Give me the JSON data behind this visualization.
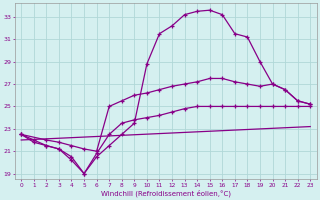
{
  "xlabel": "Windchill (Refroidissement éolien,°C)",
  "xlim": [
    -0.5,
    23.5
  ],
  "ylim": [
    18.5,
    34.2
  ],
  "xticks": [
    0,
    1,
    2,
    3,
    4,
    5,
    6,
    7,
    8,
    9,
    10,
    11,
    12,
    13,
    14,
    15,
    16,
    17,
    18,
    19,
    20,
    21,
    22,
    23
  ],
  "yticks": [
    19,
    21,
    23,
    25,
    27,
    29,
    31,
    33
  ],
  "bg_color": "#d5f0f0",
  "grid_color": "#b0d8d8",
  "line_color": "#880088",
  "line1_x": [
    0,
    1,
    2,
    3,
    4,
    5,
    6,
    7,
    8,
    9,
    10,
    11,
    12,
    13,
    14,
    15,
    16,
    17,
    18,
    19,
    20,
    21,
    22,
    23
  ],
  "line1_y": [
    22.5,
    22.0,
    21.5,
    21.2,
    20.5,
    19.0,
    20.5,
    21.5,
    22.5,
    23.5,
    28.8,
    31.5,
    32.2,
    33.2,
    33.5,
    33.6,
    33.2,
    31.5,
    31.2,
    29.0,
    27.0,
    26.5,
    25.5,
    25.2
  ],
  "line2_x": [
    0,
    2,
    3,
    4,
    5,
    6,
    7,
    8,
    9,
    10,
    11,
    12,
    13,
    14,
    15,
    16,
    17,
    18,
    19,
    20,
    21,
    22,
    23
  ],
  "line2_y": [
    22.5,
    22.0,
    21.8,
    21.5,
    21.2,
    21.0,
    25.0,
    25.5,
    26.0,
    26.2,
    26.5,
    26.8,
    27.0,
    27.2,
    27.5,
    27.5,
    27.2,
    27.0,
    26.8,
    27.0,
    26.5,
    25.5,
    25.2
  ],
  "line3_x": [
    0,
    1,
    2,
    3,
    4,
    5,
    6,
    7,
    8,
    9,
    10,
    11,
    12,
    13,
    14,
    15,
    16,
    17,
    18,
    19,
    20,
    21,
    22,
    23
  ],
  "line3_y": [
    22.5,
    21.8,
    21.5,
    21.2,
    20.2,
    19.0,
    20.8,
    22.5,
    23.5,
    23.8,
    24.0,
    24.2,
    24.5,
    24.8,
    25.0,
    25.0,
    25.0,
    25.0,
    25.0,
    25.0,
    25.0,
    25.0,
    25.0,
    25.0
  ],
  "line4_x": [
    0,
    23
  ],
  "line4_y": [
    22.0,
    23.2
  ]
}
